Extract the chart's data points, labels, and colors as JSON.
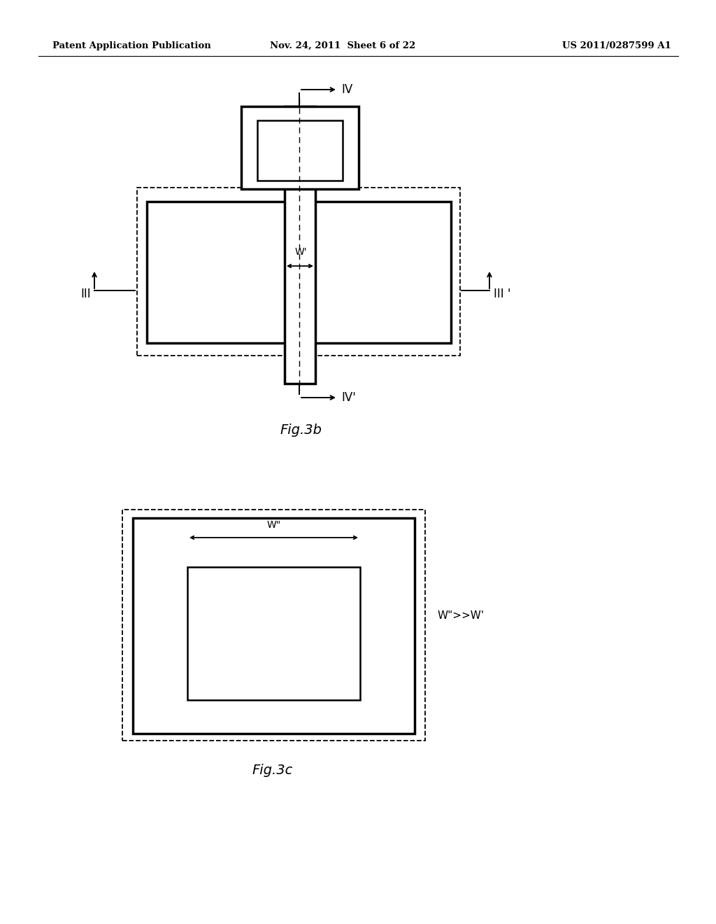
{
  "bg_color": "#ffffff",
  "text_color": "#000000",
  "header_left": "Patent Application Publication",
  "header_center": "Nov. 24, 2011  Sheet 6 of 22",
  "header_right": "US 2011/0287599 A1",
  "fig3b_label": "Fig.3b",
  "fig3c_label": "Fig.3c",
  "w_prime_label": "W'",
  "w_double_prime_label": "W\"",
  "w_compare_label": "W\">>W'",
  "iv_label": "IV",
  "iv_prime_label": "IV'",
  "iii_label": "III",
  "iii_prime_label": "III '"
}
